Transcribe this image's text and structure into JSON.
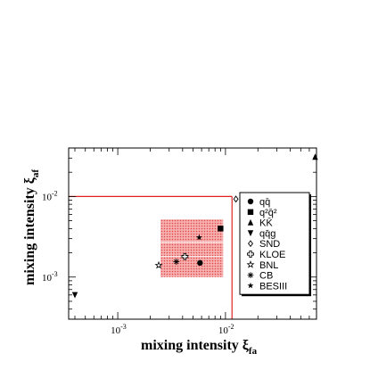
{
  "chart_data": {
    "type": "scatter",
    "xlabel": {
      "main": "mixing intensity ξ",
      "sub": "fa"
    },
    "ylabel": {
      "main": "mixing intensity ξ",
      "sub": "af"
    },
    "x_scale": "log",
    "y_scale": "log",
    "xlim": [
      0.00035,
      0.07
    ],
    "ylim": [
      0.0003,
      0.04
    ],
    "x_ticks": [
      {
        "value": 0.001,
        "label": "10",
        "exp": "-3"
      },
      {
        "value": 0.01,
        "label": "10",
        "exp": "-2"
      }
    ],
    "y_ticks": [
      {
        "value": 0.001,
        "label": "10",
        "exp": "-3"
      },
      {
        "value": 0.01,
        "label": "10",
        "exp": "-2"
      }
    ],
    "grid": false,
    "legend_position": "right",
    "bound_lines": {
      "color": "#e02020",
      "x": 0.0115,
      "y": 0.01
    },
    "shaded_region": {
      "x": [
        0.0025,
        0.0095
      ],
      "y": [
        0.001,
        0.0052
      ],
      "color": "#f08080"
    },
    "series": [
      {
        "name": "qq̄",
        "marker": "circle",
        "points": [
          [
            0.0058,
            0.0015
          ]
        ]
      },
      {
        "name": "q²q̄²",
        "marker": "square",
        "points": [
          [
            0.009,
            0.004
          ]
        ]
      },
      {
        "name": "KK̄",
        "marker": "triangle-up",
        "points": [
          [
            0.068,
            0.031
          ]
        ]
      },
      {
        "name": "qq̄g",
        "marker": "triangle-down",
        "points": [
          [
            0.0004,
            0.0006
          ]
        ]
      },
      {
        "name": "SND",
        "marker": "diamond-open",
        "points": [
          [
            0.0125,
            0.0093
          ]
        ]
      },
      {
        "name": "KLOE",
        "marker": "cross-open",
        "points": [
          [
            0.0042,
            0.0018
          ]
        ]
      },
      {
        "name": "BNL",
        "marker": "star-open",
        "points": [
          [
            0.0024,
            0.0014
          ]
        ]
      },
      {
        "name": "CB",
        "marker": "asterisk",
        "points": [
          [
            0.0035,
            0.00155
          ]
        ]
      },
      {
        "name": "BESIII",
        "marker": "star-filled",
        "points": [
          [
            0.0057,
            0.0031
          ]
        ]
      }
    ]
  }
}
